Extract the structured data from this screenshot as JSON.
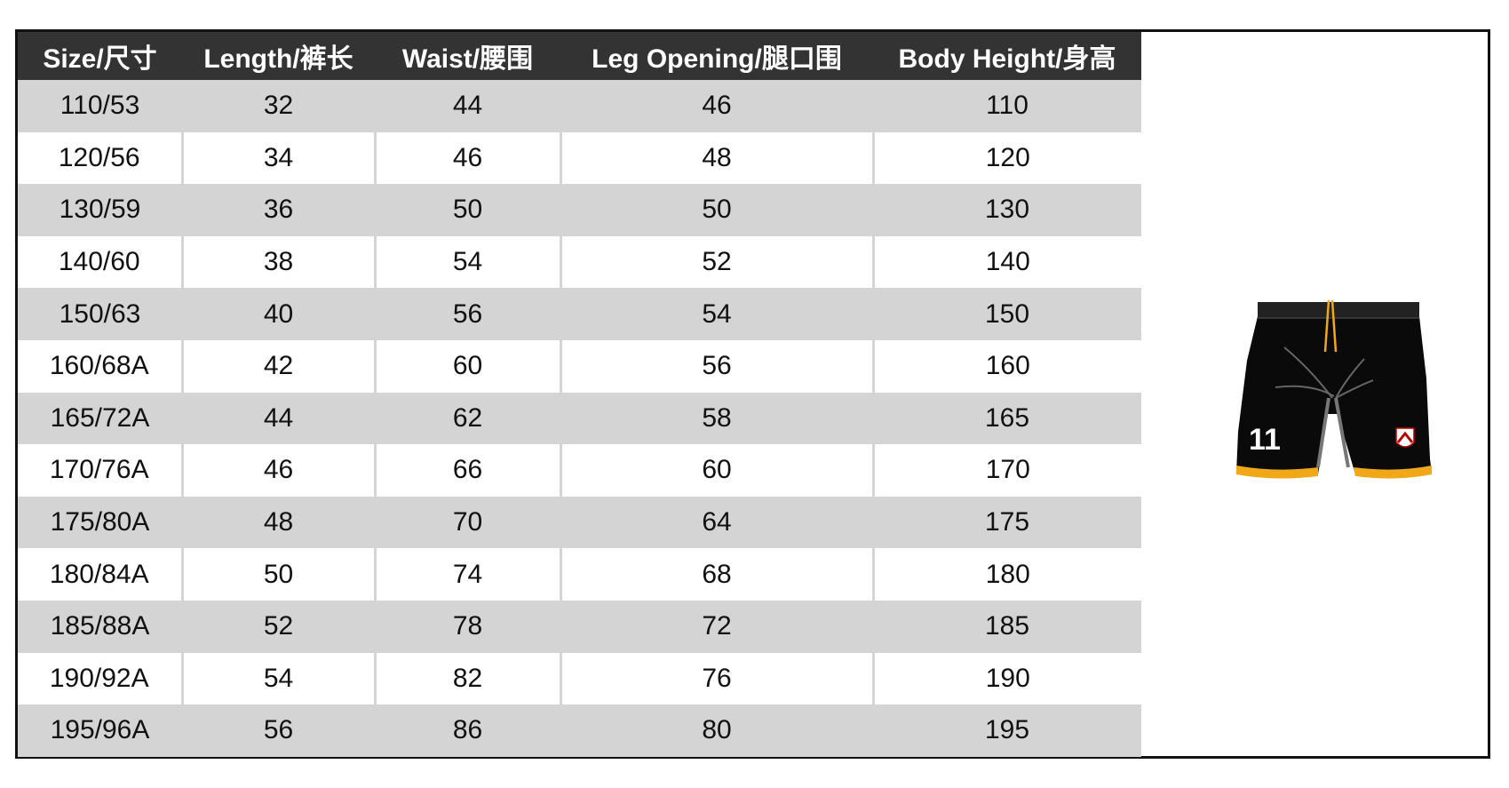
{
  "table": {
    "headers": [
      "Size/尺寸",
      "Length/裤长",
      "Waist/腰围",
      "Leg Opening/腿口围",
      "Body Height/身高"
    ],
    "rows": [
      [
        "110/53",
        "32",
        "44",
        "46",
        "110"
      ],
      [
        "120/56",
        "34",
        "46",
        "48",
        "120"
      ],
      [
        "130/59",
        "36",
        "50",
        "50",
        "130"
      ],
      [
        "140/60",
        "38",
        "54",
        "52",
        "140"
      ],
      [
        "150/63",
        "40",
        "56",
        "54",
        "150"
      ],
      [
        "160/68A",
        "42",
        "60",
        "56",
        "160"
      ],
      [
        "165/72A",
        "44",
        "62",
        "58",
        "165"
      ],
      [
        "170/76A",
        "46",
        "66",
        "60",
        "170"
      ],
      [
        "175/80A",
        "48",
        "70",
        "64",
        "175"
      ],
      [
        "180/84A",
        "50",
        "74",
        "68",
        "180"
      ],
      [
        "185/88A",
        "52",
        "78",
        "72",
        "185"
      ],
      [
        "190/92A",
        "54",
        "82",
        "76",
        "190"
      ],
      [
        "195/96A",
        "56",
        "86",
        "80",
        "195"
      ]
    ]
  },
  "product_image": {
    "description_icon": "black-shorts-image",
    "number": "11",
    "colors": {
      "body": "#0a0a0a",
      "trim": "#f0a818",
      "header": "#333333",
      "stripe": "#d4d4d4"
    }
  }
}
